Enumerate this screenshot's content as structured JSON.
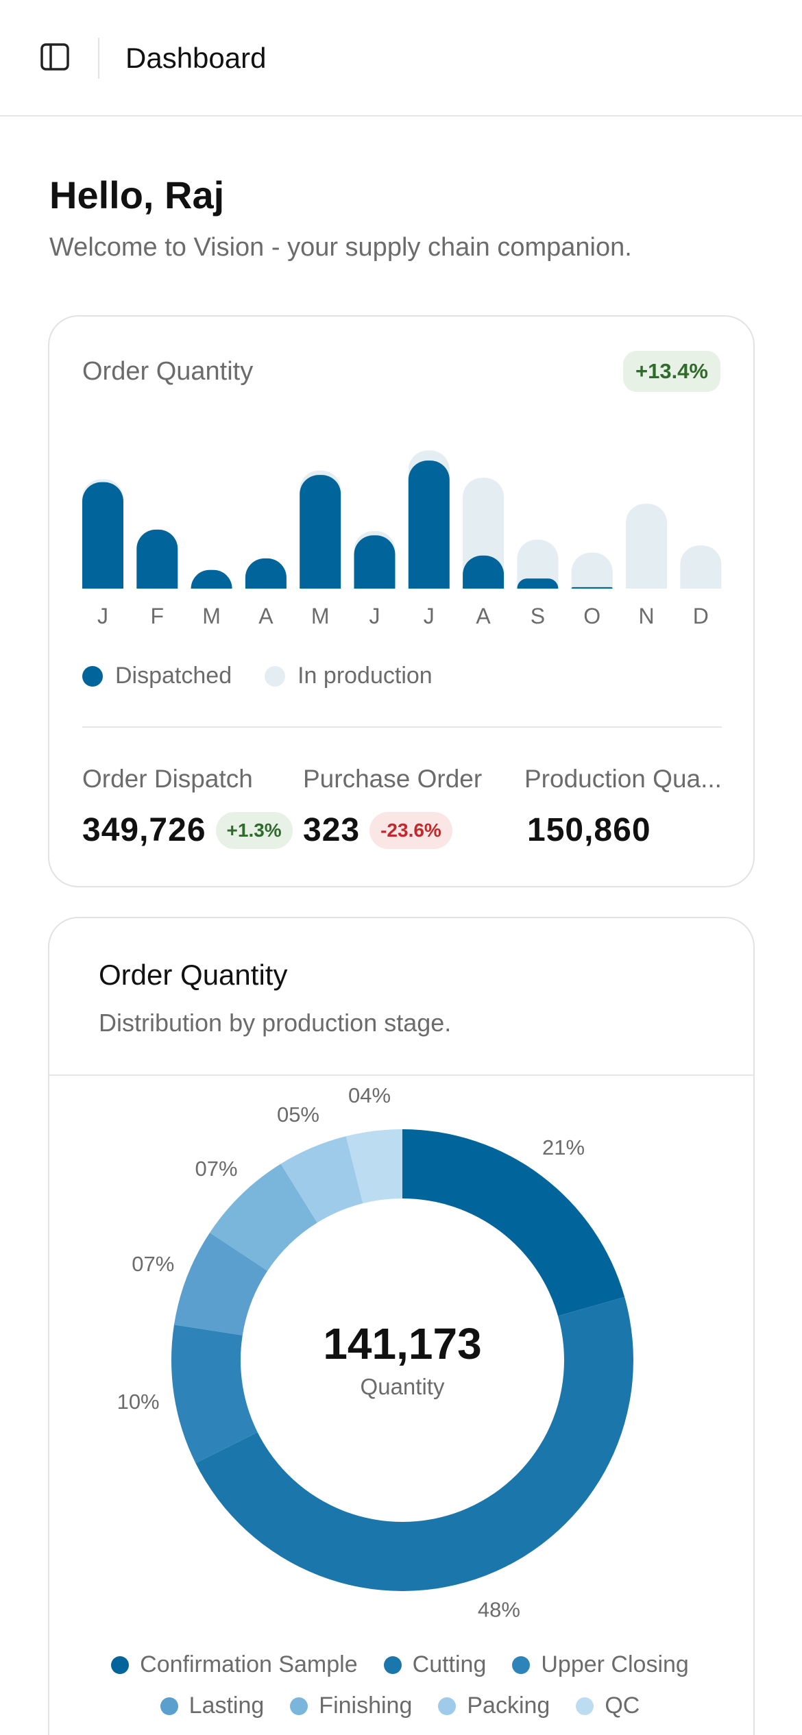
{
  "header": {
    "title": "Dashboard",
    "sidebar_icon": "sidebar-toggle-icon"
  },
  "greeting": {
    "title": "Hello, Raj",
    "subtitle": "Welcome to Vision - your supply chain companion."
  },
  "order_card": {
    "title": "Order Quantity",
    "trend": "+13.4%",
    "legend": [
      {
        "label": "Dispatched",
        "color": "#01649b"
      },
      {
        "label": "In production",
        "color": "#e4edf2"
      }
    ],
    "kpis": [
      {
        "label": "Order Dispatch",
        "value": "349,726",
        "change": "+1.3%",
        "trend": "up"
      },
      {
        "label": "Purchase Order",
        "value": "323",
        "change": "-23.6%",
        "trend": "down"
      },
      {
        "label": "Production Qua...",
        "value": "150,860"
      }
    ]
  },
  "chart_data": [
    {
      "type": "bar",
      "categories": [
        "J",
        "F",
        "M",
        "A",
        "M",
        "J",
        "J",
        "A",
        "S",
        "O",
        "N",
        "D"
      ],
      "series": [
        {
          "name": "Dispatched",
          "values": [
            74,
            41,
            13,
            21,
            79,
            37,
            89,
            23,
            7,
            1,
            0,
            0
          ]
        },
        {
          "name": "In production",
          "values": [
            76,
            41,
            13,
            21,
            82,
            40,
            96,
            77,
            34,
            25,
            59,
            30
          ]
        }
      ],
      "stacked": false,
      "legend": "bottom",
      "grid": false
    },
    {
      "type": "pie",
      "variant": "donut",
      "title": "Order Quantity",
      "subtitle": "Distribution by production stage.",
      "center_value": "141,173",
      "center_label": "Quantity",
      "labels": [
        "Confirmation Sample",
        "Cutting",
        "Upper Closing",
        "Lasting",
        "Finishing",
        "Packing",
        "QC"
      ],
      "values": [
        21,
        48,
        10,
        7,
        7,
        5,
        4
      ],
      "value_labels": [
        "21%",
        "48%",
        "10%",
        "07%",
        "07%",
        "05%",
        "04%"
      ],
      "colors": [
        "#01649b",
        "#1b77ab",
        "#2e84b8",
        "#5a9fcd",
        "#7ab6dc",
        "#9ecbe9",
        "#bcdcf2"
      ],
      "legend": "bottom"
    }
  ]
}
